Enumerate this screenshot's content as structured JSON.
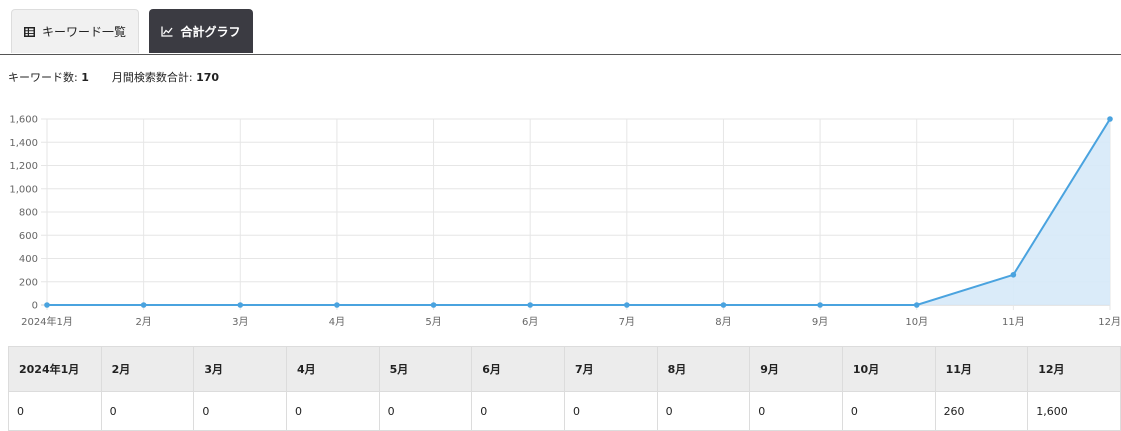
{
  "tabs": {
    "list_label": "キーワード一覧",
    "graph_label": "合計グラフ",
    "list_icon": "table-icon",
    "graph_icon": "line-chart-icon"
  },
  "summary": {
    "keyword_count_label": "キーワード数:",
    "keyword_count": "1",
    "monthly_total_label": "月間検索数合計:",
    "monthly_total": "170"
  },
  "chart_data": {
    "type": "area",
    "categories": [
      "2024年1月",
      "2月",
      "3月",
      "4月",
      "5月",
      "6月",
      "7月",
      "8月",
      "9月",
      "10月",
      "11月",
      "12月"
    ],
    "values": [
      0,
      0,
      0,
      0,
      0,
      0,
      0,
      0,
      0,
      0,
      260,
      1600
    ],
    "yticks": [
      "0",
      "200",
      "400",
      "600",
      "800",
      "1,000",
      "1,200",
      "1,400",
      "1,600"
    ],
    "ylim": [
      0,
      1600
    ],
    "grid": true,
    "line_color": "#4aa3df",
    "fill_color": "#d6e9f8"
  },
  "table": {
    "headers": [
      "2024年1月",
      "2月",
      "3月",
      "4月",
      "5月",
      "6月",
      "7月",
      "8月",
      "9月",
      "10月",
      "11月",
      "12月"
    ],
    "values": [
      "0",
      "0",
      "0",
      "0",
      "0",
      "0",
      "0",
      "0",
      "0",
      "0",
      "260",
      "1,600"
    ]
  }
}
